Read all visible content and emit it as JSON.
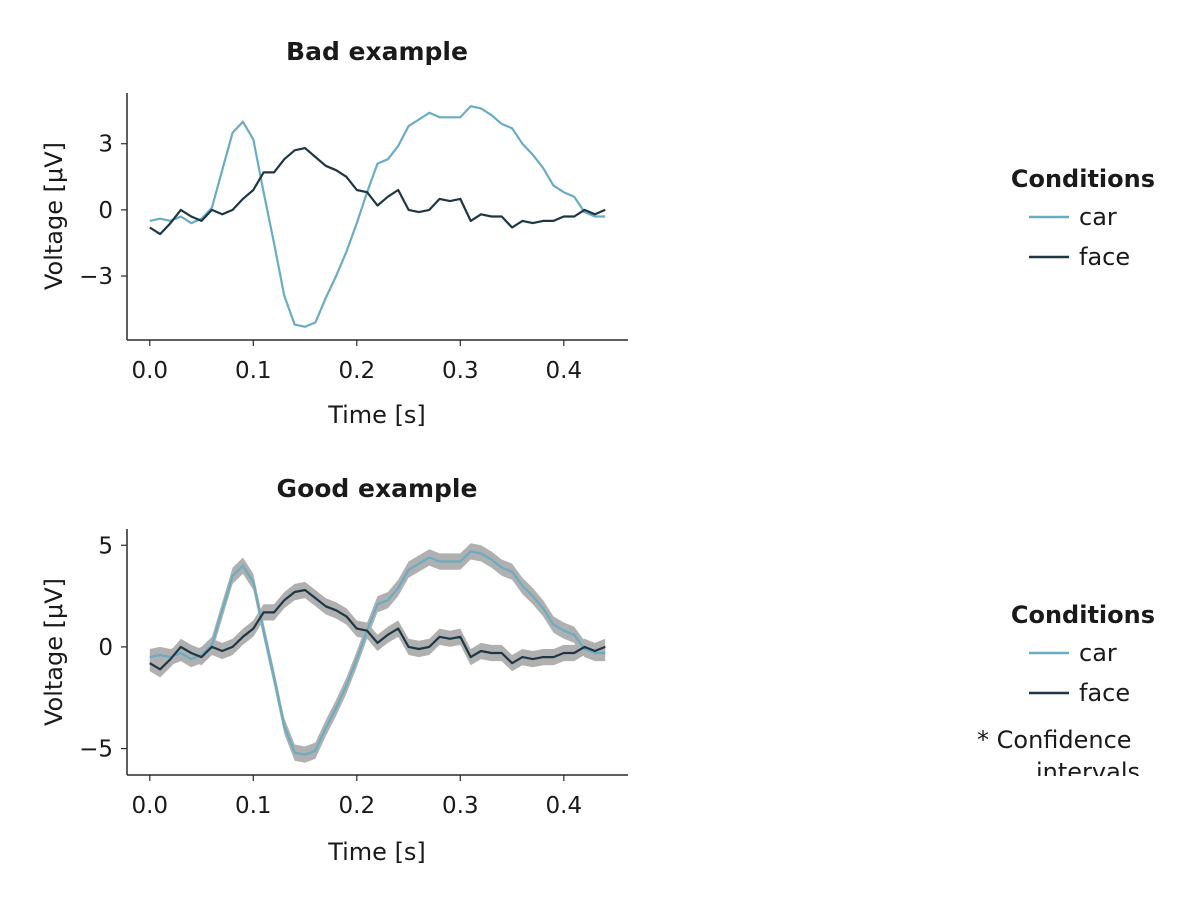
{
  "chart_data": [
    {
      "type": "line",
      "title": "Bad example",
      "xlabel": "Time [s]",
      "ylabel": "Voltage [μV]",
      "xlim": [
        -0.022,
        0.462
      ],
      "ylim": [
        -5.9,
        5.3
      ],
      "xticks": [
        0.0,
        0.1,
        0.2,
        0.3,
        0.4
      ],
      "xtick_labels": [
        "0.0",
        "0.1",
        "0.2",
        "0.3",
        "0.4"
      ],
      "yticks": [
        3,
        0,
        -3
      ],
      "ytick_labels": [
        "3",
        "0",
        "−3"
      ],
      "grid": false,
      "x": [
        0.0,
        0.01,
        0.02,
        0.03,
        0.04,
        0.05,
        0.06,
        0.07,
        0.08,
        0.09,
        0.1,
        0.11,
        0.12,
        0.13,
        0.14,
        0.15,
        0.16,
        0.17,
        0.18,
        0.19,
        0.2,
        0.21,
        0.22,
        0.23,
        0.24,
        0.25,
        0.26,
        0.27,
        0.28,
        0.29,
        0.3,
        0.31,
        0.32,
        0.33,
        0.34,
        0.35,
        0.36,
        0.37,
        0.38,
        0.39,
        0.4,
        0.41,
        0.42,
        0.43,
        0.44
      ],
      "series": [
        {
          "name": "car",
          "color": "#6aacc3",
          "values": [
            -0.5,
            -0.4,
            -0.5,
            -0.3,
            -0.6,
            -0.4,
            0.1,
            1.8,
            3.5,
            4.0,
            3.2,
            0.8,
            -1.5,
            -3.9,
            -5.2,
            -5.3,
            -5.1,
            -4.0,
            -3.0,
            -1.9,
            -0.6,
            0.8,
            2.1,
            2.3,
            2.9,
            3.8,
            4.1,
            4.4,
            4.2,
            4.2,
            4.2,
            4.7,
            4.6,
            4.3,
            3.9,
            3.7,
            3.0,
            2.5,
            1.9,
            1.1,
            0.8,
            0.6,
            -0.1,
            -0.3,
            -0.3
          ]
        },
        {
          "name": "face",
          "color": "#1d3744",
          "values": [
            -0.8,
            -1.1,
            -0.6,
            0.0,
            -0.3,
            -0.5,
            0.0,
            -0.2,
            0.0,
            0.5,
            0.9,
            1.7,
            1.7,
            2.3,
            2.7,
            2.8,
            2.4,
            2.0,
            1.8,
            1.5,
            0.9,
            0.8,
            0.2,
            0.6,
            0.9,
            0.0,
            -0.1,
            0.0,
            0.5,
            0.4,
            0.5,
            -0.5,
            -0.2,
            -0.3,
            -0.3,
            -0.8,
            -0.5,
            -0.6,
            -0.5,
            -0.5,
            -0.3,
            -0.3,
            0.0,
            -0.2,
            0.0
          ]
        }
      ],
      "legend": {
        "title": "Conditions",
        "placement": "right"
      }
    },
    {
      "type": "line",
      "title": "Good example",
      "xlabel": "Time [s]",
      "ylabel": "Voltage [μV]",
      "xlim": [
        -0.022,
        0.462
      ],
      "ylim": [
        -6.3,
        5.8
      ],
      "xticks": [
        0.0,
        0.1,
        0.2,
        0.3,
        0.4
      ],
      "xtick_labels": [
        "0.0",
        "0.1",
        "0.2",
        "0.3",
        "0.4"
      ],
      "yticks": [
        5,
        0,
        -5
      ],
      "ytick_labels": [
        "5",
        "0",
        "−5"
      ],
      "grid": false,
      "band_color": "#b0b0b0",
      "x": [
        0.0,
        0.01,
        0.02,
        0.03,
        0.04,
        0.05,
        0.06,
        0.07,
        0.08,
        0.09,
        0.1,
        0.11,
        0.12,
        0.13,
        0.14,
        0.15,
        0.16,
        0.17,
        0.18,
        0.19,
        0.2,
        0.21,
        0.22,
        0.23,
        0.24,
        0.25,
        0.26,
        0.27,
        0.28,
        0.29,
        0.3,
        0.31,
        0.32,
        0.33,
        0.34,
        0.35,
        0.36,
        0.37,
        0.38,
        0.39,
        0.4,
        0.41,
        0.42,
        0.43,
        0.44
      ],
      "series": [
        {
          "name": "car",
          "color": "#6aacc3",
          "ci_halfwidth": 0.4,
          "values": [
            -0.5,
            -0.4,
            -0.5,
            -0.3,
            -0.6,
            -0.4,
            0.1,
            1.8,
            3.5,
            4.0,
            3.2,
            0.8,
            -1.5,
            -3.9,
            -5.2,
            -5.3,
            -5.1,
            -4.0,
            -3.0,
            -1.9,
            -0.6,
            0.8,
            2.1,
            2.3,
            2.9,
            3.8,
            4.1,
            4.4,
            4.2,
            4.2,
            4.2,
            4.7,
            4.6,
            4.3,
            3.9,
            3.7,
            3.0,
            2.5,
            1.9,
            1.1,
            0.8,
            0.6,
            -0.1,
            -0.3,
            -0.3
          ]
        },
        {
          "name": "face",
          "color": "#1d3744",
          "ci_halfwidth": 0.4,
          "values": [
            -0.8,
            -1.1,
            -0.6,
            0.0,
            -0.3,
            -0.5,
            0.0,
            -0.2,
            0.0,
            0.5,
            0.9,
            1.7,
            1.7,
            2.3,
            2.7,
            2.8,
            2.4,
            2.0,
            1.8,
            1.5,
            0.9,
            0.8,
            0.2,
            0.6,
            0.9,
            0.0,
            -0.1,
            0.0,
            0.5,
            0.4,
            0.5,
            -0.5,
            -0.2,
            -0.3,
            -0.3,
            -0.8,
            -0.5,
            -0.6,
            -0.5,
            -0.5,
            -0.3,
            -0.3,
            0.0,
            -0.2,
            0.0
          ]
        }
      ],
      "legend": {
        "title": "Conditions",
        "placement": "right",
        "note": "* Confidence intervals"
      }
    }
  ]
}
